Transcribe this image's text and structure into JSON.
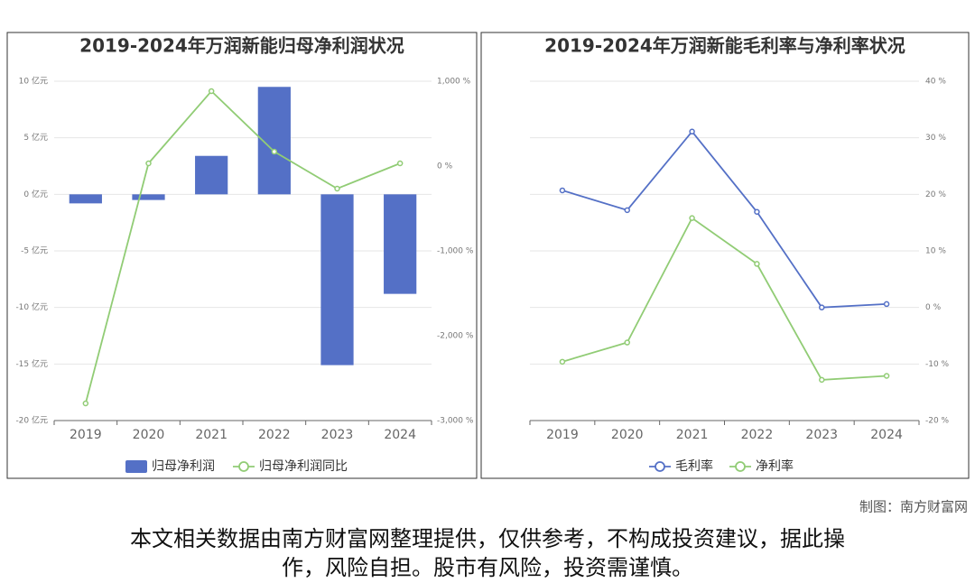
{
  "chart_data": [
    {
      "type": "bar",
      "title": "2019-2024年万润新能归母净利润状况",
      "categories": [
        "2019",
        "2020",
        "2021",
        "2022",
        "2023",
        "2024"
      ],
      "series": [
        {
          "name": "归母净利润",
          "type": "bar",
          "color": "#5470c6",
          "values": [
            -0.8,
            -0.5,
            3.4,
            9.5,
            -15.1,
            -8.8
          ]
        },
        {
          "name": "归母净利润同比",
          "type": "line",
          "axis": "y2",
          "color": "#91cc75",
          "values": [
            -2798,
            32,
            883,
            170,
            -266,
            32
          ]
        }
      ],
      "ylim": [
        -20,
        10
      ],
      "yticks": [
        {
          "value": -20,
          "label": "-20 亿元"
        },
        {
          "value": -15,
          "label": "-15 亿元"
        },
        {
          "value": -10,
          "label": "-10 亿元"
        },
        {
          "value": -5,
          "label": "-5 亿元"
        },
        {
          "value": 0,
          "label": "0 亿元"
        },
        {
          "value": 5,
          "label": "5 亿元"
        },
        {
          "value": 10,
          "label": "10 亿元"
        }
      ],
      "y2lim": [
        -3000,
        1000
      ],
      "y2ticks": [
        {
          "value": -3000,
          "label": "-3,000 %"
        },
        {
          "value": -2000,
          "label": "-2,000 %"
        },
        {
          "value": -1000,
          "label": "-1,000 %"
        },
        {
          "value": 0,
          "label": "0 %"
        },
        {
          "value": 1000,
          "label": "1,000 %"
        }
      ],
      "grid": true
    },
    {
      "type": "line",
      "title": "2019-2024年万润新能毛利率与净利率状况",
      "categories": [
        "2019",
        "2020",
        "2021",
        "2022",
        "2023",
        "2024"
      ],
      "series": [
        {
          "name": "毛利率",
          "type": "line",
          "color": "#5470c6",
          "values": [
            20.7,
            17.2,
            31.1,
            16.9,
            0.0,
            0.6
          ]
        },
        {
          "name": "净利率",
          "type": "line",
          "color": "#91cc75",
          "values": [
            -9.6,
            -6.2,
            15.8,
            7.7,
            -12.8,
            -12.1
          ]
        }
      ],
      "ylim": [
        -20,
        40
      ],
      "yaxis_side": "right",
      "yticks": [
        {
          "value": -20,
          "label": "-20 %"
        },
        {
          "value": -10,
          "label": "-10 %"
        },
        {
          "value": 0,
          "label": "0 %"
        },
        {
          "value": 10,
          "label": "10 %"
        },
        {
          "value": 20,
          "label": "20 %"
        },
        {
          "value": 30,
          "label": "30 %"
        },
        {
          "value": 40,
          "label": "40 %"
        }
      ],
      "grid": true
    }
  ],
  "footer": {
    "credit": "制图：南方财富网",
    "disclaimer": [
      "本文相关数据由南方财富网整理提供，仅供参考，不构成投资建议，据此操",
      "作，风险自担。股市有风险，投资需谨慎。"
    ]
  }
}
